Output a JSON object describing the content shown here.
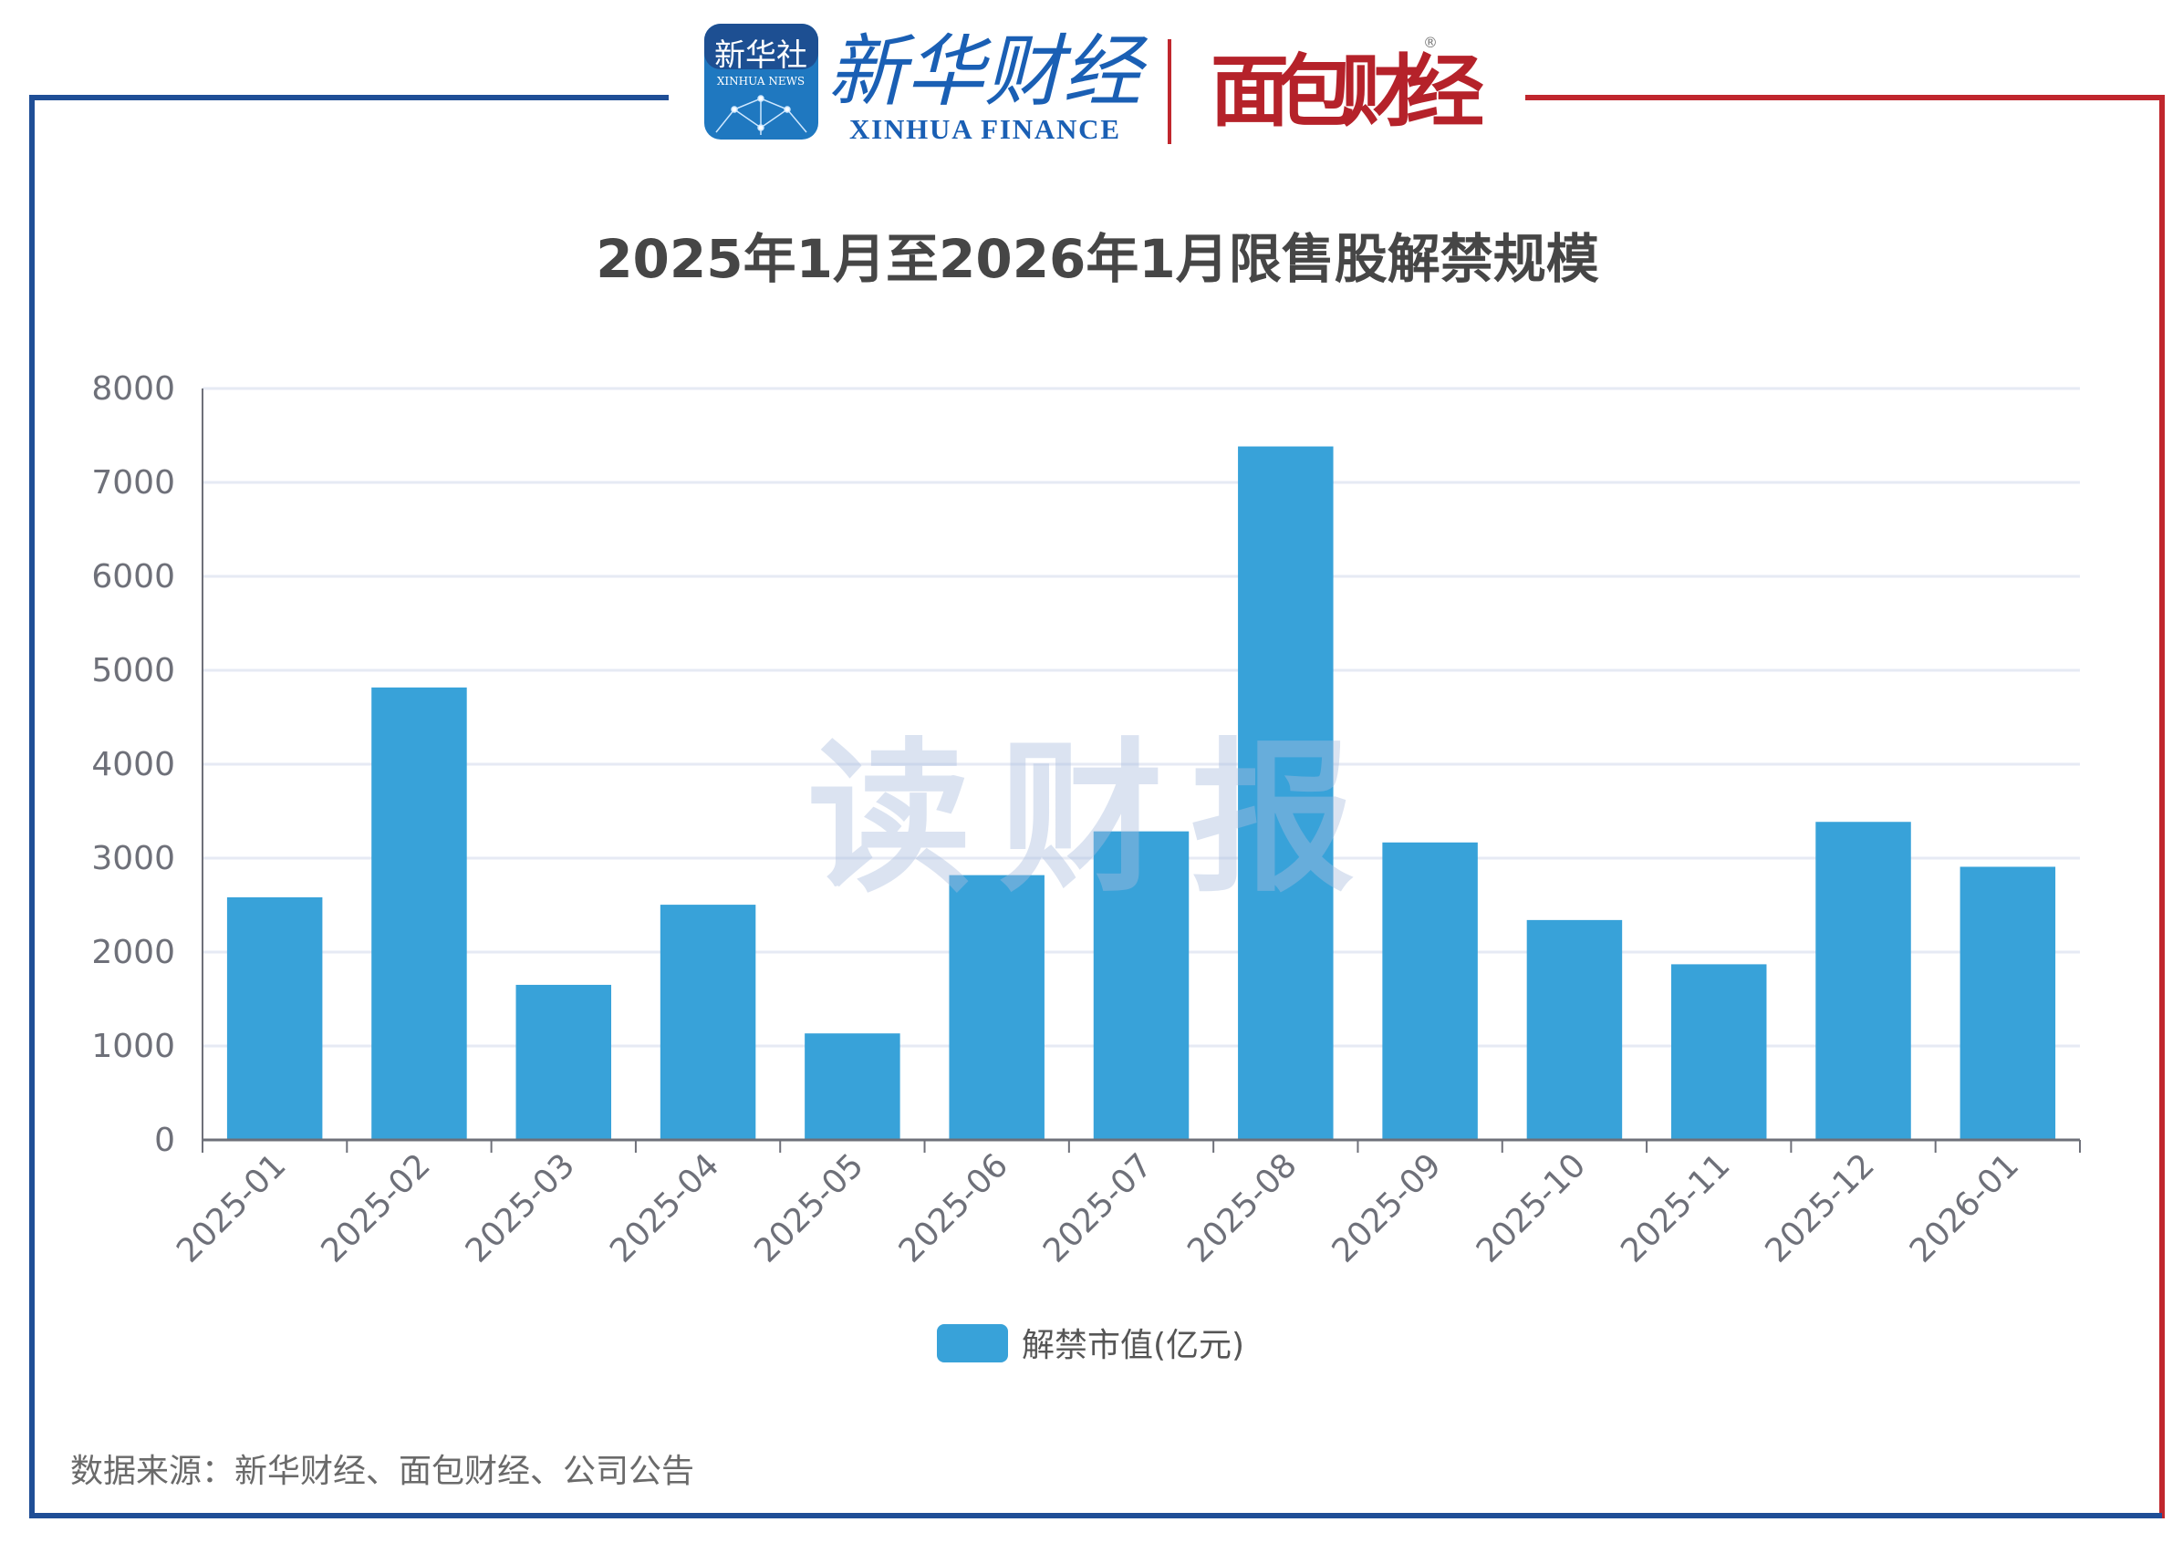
{
  "logos": {
    "xinhua_news": {
      "cn": "新华社",
      "en": "XINHUA NEWS"
    },
    "xinhua_finance": {
      "cn": "新华财经",
      "en": "XINHUA FINANCE"
    },
    "mianbao": {
      "cn": "面包财经"
    }
  },
  "watermark": "读财报",
  "colors": {
    "bar": "#38a2d9",
    "frame_left": "#1f4e96",
    "frame_right": "#c0262d",
    "grid": "#e6eaf4",
    "axis": "#6e7079"
  },
  "chart_data": {
    "type": "bar",
    "title": "2025年1月至2026年1月限售股解禁规模",
    "categories": [
      "2025-01",
      "2025-02",
      "2025-03",
      "2025-04",
      "2025-05",
      "2025-06",
      "2025-07",
      "2025-08",
      "2025-09",
      "2025-10",
      "2025-11",
      "2025-12",
      "2026-01"
    ],
    "series": [
      {
        "name": "解禁市值(亿元)",
        "values": [
          2583,
          4817,
          1651,
          2504,
          1134,
          2819,
          3285,
          7383,
          3167,
          2341,
          1870,
          3386,
          2908
        ]
      }
    ],
    "yticks": [
      0,
      1000,
      2000,
      3000,
      4000,
      5000,
      6000,
      7000,
      8000
    ],
    "ylim": [
      0,
      8000
    ],
    "grid": true,
    "legend": "bottom-center",
    "xlabel": "",
    "ylabel": ""
  },
  "source": "数据来源：新华财经、面包财经、公司公告"
}
